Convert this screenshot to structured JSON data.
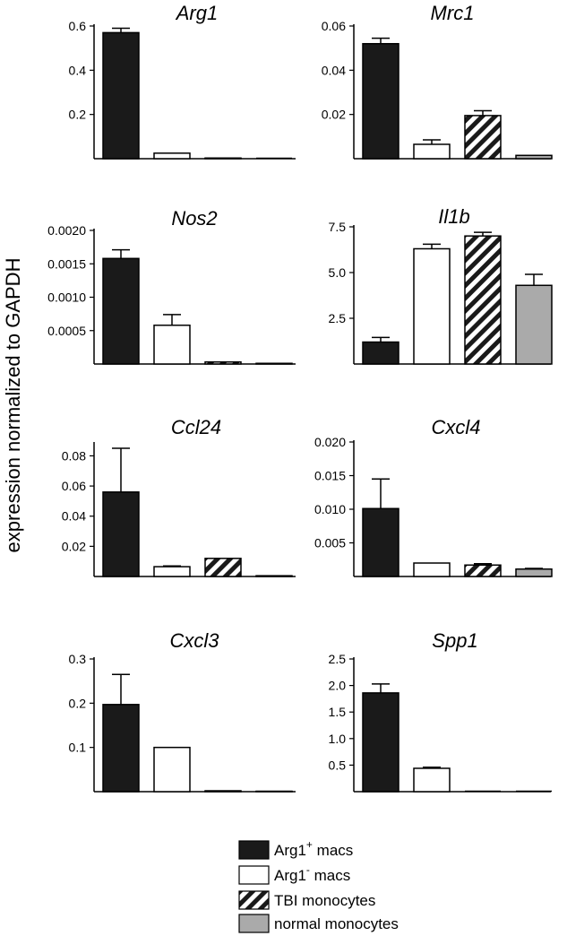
{
  "figure": {
    "ylabel": "expression normalized to GAPDH"
  },
  "legend": [
    {
      "base": "Arg1",
      "sup": "+",
      "rest": " macs",
      "style": "solid"
    },
    {
      "base": "Arg1",
      "sup": "-",
      "rest": " macs",
      "style": "open"
    },
    {
      "base": "TBI monocytes",
      "sup": "",
      "rest": "",
      "style": "hatched"
    },
    {
      "base": "normal monocytes",
      "sup": "",
      "rest": "",
      "style": "gray"
    }
  ],
  "colors": {
    "solid": "#1a1a1a",
    "open": "#ffffff",
    "hatched": "#1a1a1a",
    "gray": "#aaaaaa",
    "axis": "#000000"
  },
  "chart_data": [
    {
      "type": "bar",
      "title": "Arg1",
      "categories": [
        "Arg1+ macs",
        "Arg1- macs",
        "TBI monocytes",
        "normal monocytes"
      ],
      "values": [
        0.57,
        0.025,
        0.003,
        0.0
      ],
      "errors": [
        0.02,
        0.0,
        0.0,
        0.0
      ],
      "ylim": [
        0,
        0.6
      ],
      "yticks": [
        0.2,
        0.4,
        0.6
      ],
      "ytick_labels": [
        "0.2",
        "0.4",
        "0.6"
      ]
    },
    {
      "type": "bar",
      "title": "Mrc1",
      "categories": [
        "Arg1+ macs",
        "Arg1- macs",
        "TBI monocytes",
        "normal monocytes"
      ],
      "values": [
        0.052,
        0.0065,
        0.0195,
        0.0015
      ],
      "errors": [
        0.0025,
        0.002,
        0.0022,
        0.0
      ],
      "ylim": [
        0,
        0.06
      ],
      "yticks": [
        0.02,
        0.04,
        0.06
      ],
      "ytick_labels": [
        "0.02",
        "0.04",
        "0.06"
      ]
    },
    {
      "type": "bar",
      "title": "Nos2",
      "categories": [
        "Arg1+ macs",
        "Arg1- macs",
        "TBI monocytes",
        "normal monocytes"
      ],
      "values": [
        0.00158,
        0.00058,
        3e-05,
        1e-05
      ],
      "errors": [
        0.00013,
        0.00016,
        0.0,
        0.0
      ],
      "ylim": [
        0,
        0.002
      ],
      "yticks": [
        0.0005,
        0.001,
        0.0015,
        0.002
      ],
      "ytick_labels": [
        "0.0005",
        "0.0010",
        "0.0015",
        "0.0020"
      ]
    },
    {
      "type": "bar",
      "title": "Il1b",
      "categories": [
        "Arg1+ macs",
        "Arg1- macs",
        "TBI monocytes",
        "normal monocytes"
      ],
      "values": [
        1.2,
        6.3,
        7.0,
        4.3
      ],
      "errors": [
        0.25,
        0.25,
        0.2,
        0.6
      ],
      "ylim": [
        0,
        7.5
      ],
      "yticks": [
        2.5,
        5.0,
        7.5
      ],
      "ytick_labels": [
        "2.5",
        "5.0",
        "7.5"
      ]
    },
    {
      "type": "bar",
      "title": "Ccl24",
      "categories": [
        "Arg1+ macs",
        "Arg1- macs",
        "TBI monocytes",
        "normal monocytes"
      ],
      "values": [
        0.056,
        0.0065,
        0.012,
        0.0005
      ],
      "errors": [
        0.029,
        0.0005,
        0.0,
        0.0
      ],
      "ylim": [
        0,
        0.088
      ],
      "yticks": [
        0.02,
        0.04,
        0.06,
        0.08
      ],
      "ytick_labels": [
        "0.02",
        "0.04",
        "0.06",
        "0.08"
      ]
    },
    {
      "type": "bar",
      "title": "Cxcl4",
      "categories": [
        "Arg1+ macs",
        "Arg1- macs",
        "TBI monocytes",
        "normal monocytes"
      ],
      "values": [
        0.0101,
        0.002,
        0.0017,
        0.0011
      ],
      "errors": [
        0.0044,
        0.0,
        0.0002,
        0.0001
      ],
      "ylim": [
        0,
        0.02
      ],
      "yticks": [
        0.005,
        0.01,
        0.015,
        0.02
      ],
      "ytick_labels": [
        "0.005",
        "0.010",
        "0.015",
        "0.020"
      ]
    },
    {
      "type": "bar",
      "title": "Cxcl3",
      "categories": [
        "Arg1+ macs",
        "Arg1- macs",
        "TBI monocytes",
        "normal monocytes"
      ],
      "values": [
        0.197,
        0.1,
        0.002,
        0.001
      ],
      "errors": [
        0.068,
        0.0,
        0.0,
        0.0
      ],
      "ylim": [
        0,
        0.3
      ],
      "yticks": [
        0.1,
        0.2,
        0.3
      ],
      "ytick_labels": [
        "0.1",
        "0.2",
        "0.3"
      ]
    },
    {
      "type": "bar",
      "title": "Spp1",
      "categories": [
        "Arg1+ macs",
        "Arg1- macs",
        "TBI monocytes",
        "normal monocytes"
      ],
      "values": [
        1.86,
        0.44,
        0.0,
        0.0
      ],
      "errors": [
        0.17,
        0.02,
        0.0,
        0.0
      ],
      "ylim": [
        0,
        2.5
      ],
      "yticks": [
        0.5,
        1.0,
        1.5,
        2.0,
        2.5
      ],
      "ytick_labels": [
        "0.5",
        "1.0",
        "1.5",
        "2.0",
        "2.5"
      ]
    }
  ]
}
